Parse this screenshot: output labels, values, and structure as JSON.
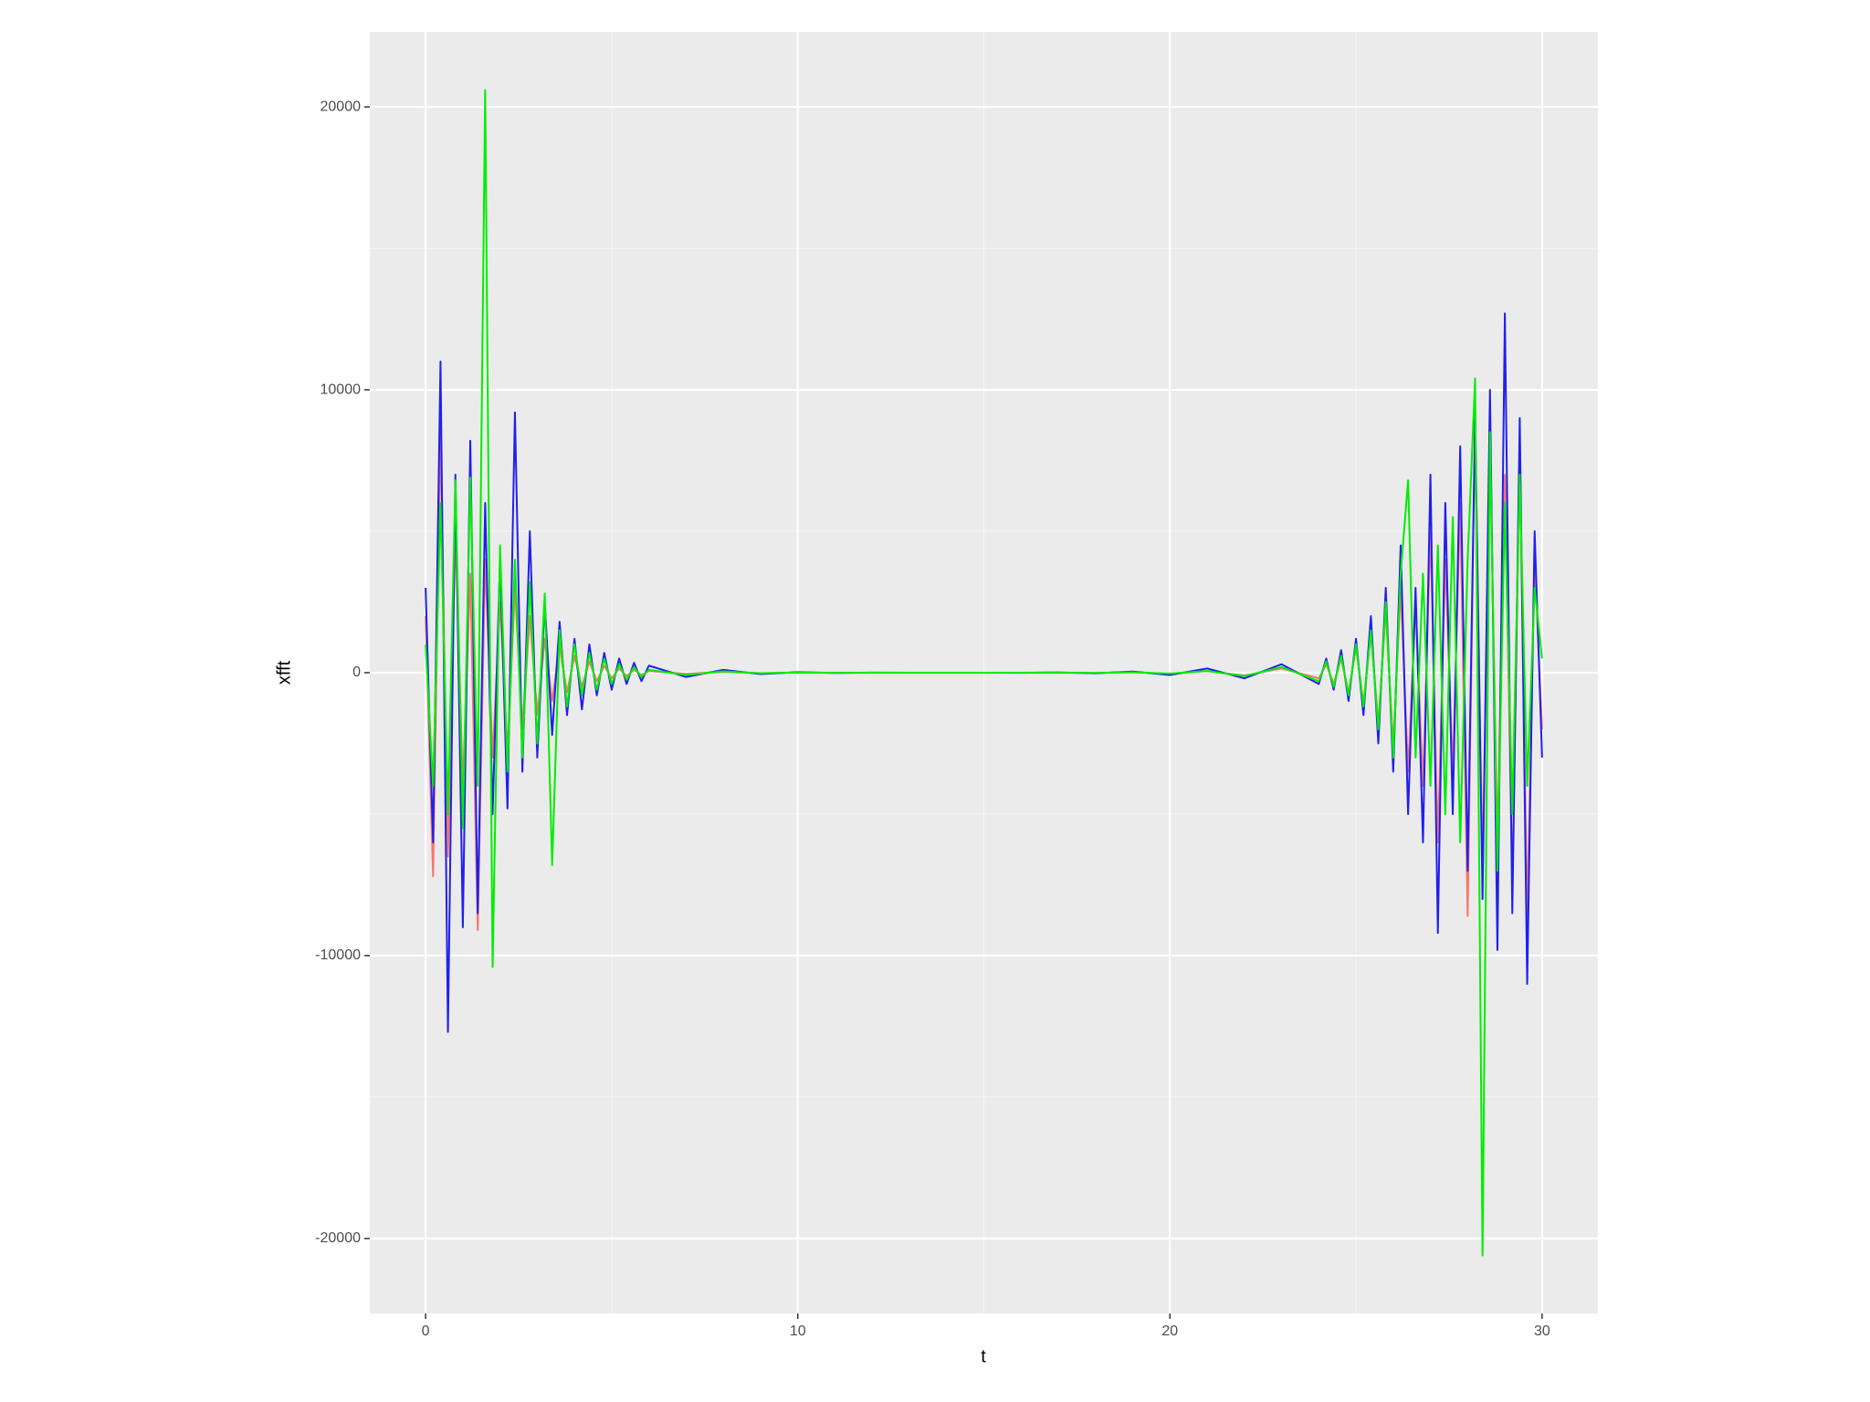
{
  "chart_data": {
    "type": "line",
    "x_label": "t",
    "y_label": "xfft",
    "x": [
      0,
      0.2,
      0.4,
      0.6,
      0.8,
      1,
      1.2,
      1.4,
      1.6,
      1.8,
      2,
      2.2,
      2.4,
      2.6,
      2.8,
      3,
      3.2,
      3.4,
      3.6,
      3.8,
      4,
      4.2,
      4.4,
      4.6,
      4.8,
      5,
      5.2,
      5.4,
      5.6,
      5.8,
      6,
      7,
      8,
      9,
      10,
      11,
      12,
      13,
      14,
      15,
      16,
      17,
      18,
      19,
      20,
      21,
      22,
      23,
      24,
      24.2,
      24.4,
      24.6,
      24.8,
      25,
      25.2,
      25.4,
      25.6,
      25.8,
      26,
      26.2,
      26.4,
      26.6,
      26.8,
      27,
      27.2,
      27.4,
      27.6,
      27.8,
      28,
      28.2,
      28.4,
      28.6,
      28.8,
      29,
      29.2,
      29.4,
      29.6,
      29.8,
      30
    ],
    "series": [
      {
        "color": "#f8766d",
        "values": [
          2000,
          -7200,
          8500,
          -6500,
          5000,
          -4000,
          3500,
          -9100,
          4000,
          -3000,
          2500,
          -2800,
          3000,
          -2000,
          2000,
          -1500,
          1200,
          -1000,
          900,
          -700,
          600,
          -500,
          400,
          -300,
          250,
          -200,
          150,
          -120,
          100,
          -80,
          60,
          -40,
          30,
          -15,
          10,
          -5,
          0,
          0,
          0,
          0,
          0,
          5,
          -10,
          20,
          -40,
          60,
          -100,
          150,
          -200,
          300,
          -400,
          500,
          -700,
          900,
          -1100,
          1400,
          -1800,
          2200,
          -2600,
          3000,
          -3500,
          2500,
          -4000,
          5000,
          -6000,
          4000,
          -3500,
          6000,
          -8600,
          9000,
          -7000,
          8000,
          -6000,
          7000,
          -7500,
          7500,
          -8600,
          4000,
          -2000
        ]
      },
      {
        "color": "#2020ee",
        "values": [
          3000,
          -6000,
          11000,
          -12700,
          7000,
          -9000,
          8200,
          -8500,
          6000,
          -5000,
          4000,
          -4800,
          9200,
          -3500,
          5000,
          -3000,
          2500,
          -2200,
          1800,
          -1500,
          1200,
          -1300,
          1000,
          -800,
          700,
          -600,
          500,
          -400,
          350,
          -300,
          250,
          -150,
          100,
          -50,
          20,
          -10,
          5,
          0,
          0,
          0,
          -5,
          10,
          -20,
          40,
          -80,
          150,
          -200,
          300,
          -400,
          500,
          -600,
          800,
          -1000,
          1200,
          -1500,
          2000,
          -2500,
          3000,
          -3500,
          4500,
          -5000,
          3000,
          -6000,
          7000,
          -9200,
          6000,
          -5000,
          8000,
          -7000,
          9000,
          -8000,
          10000,
          -9800,
          12700,
          -8500,
          9000,
          -11000,
          5000,
          -3000
        ]
      },
      {
        "color": "#00ee00",
        "values": [
          1000,
          -4000,
          6000,
          -5000,
          6800,
          -5500,
          6900,
          -4000,
          20600,
          -10400,
          4500,
          -3500,
          4000,
          -3000,
          3200,
          -2500,
          2800,
          -6800,
          1500,
          -1200,
          1000,
          -800,
          700,
          -600,
          500,
          -400,
          300,
          -250,
          200,
          -150,
          100,
          -80,
          50,
          -20,
          10,
          -5,
          0,
          0,
          0,
          0,
          0,
          5,
          -10,
          15,
          -30,
          60,
          -120,
          200,
          -300,
          400,
          -500,
          600,
          -800,
          1000,
          -1200,
          1500,
          -2000,
          2500,
          -3000,
          3500,
          6800,
          -3000,
          3500,
          -4000,
          4500,
          -5000,
          5500,
          -6000,
          4000,
          10400,
          -20600,
          8500,
          -7000,
          6000,
          -5000,
          7000,
          -4000,
          3000,
          500
        ]
      }
    ],
    "xlim": [
      -1.5,
      31.5
    ],
    "ylim": [
      -22650,
      22650
    ],
    "xticks": [
      0,
      10,
      20,
      30
    ],
    "yticks": [
      -20000,
      -10000,
      0,
      10000,
      20000
    ],
    "grid": true
  }
}
